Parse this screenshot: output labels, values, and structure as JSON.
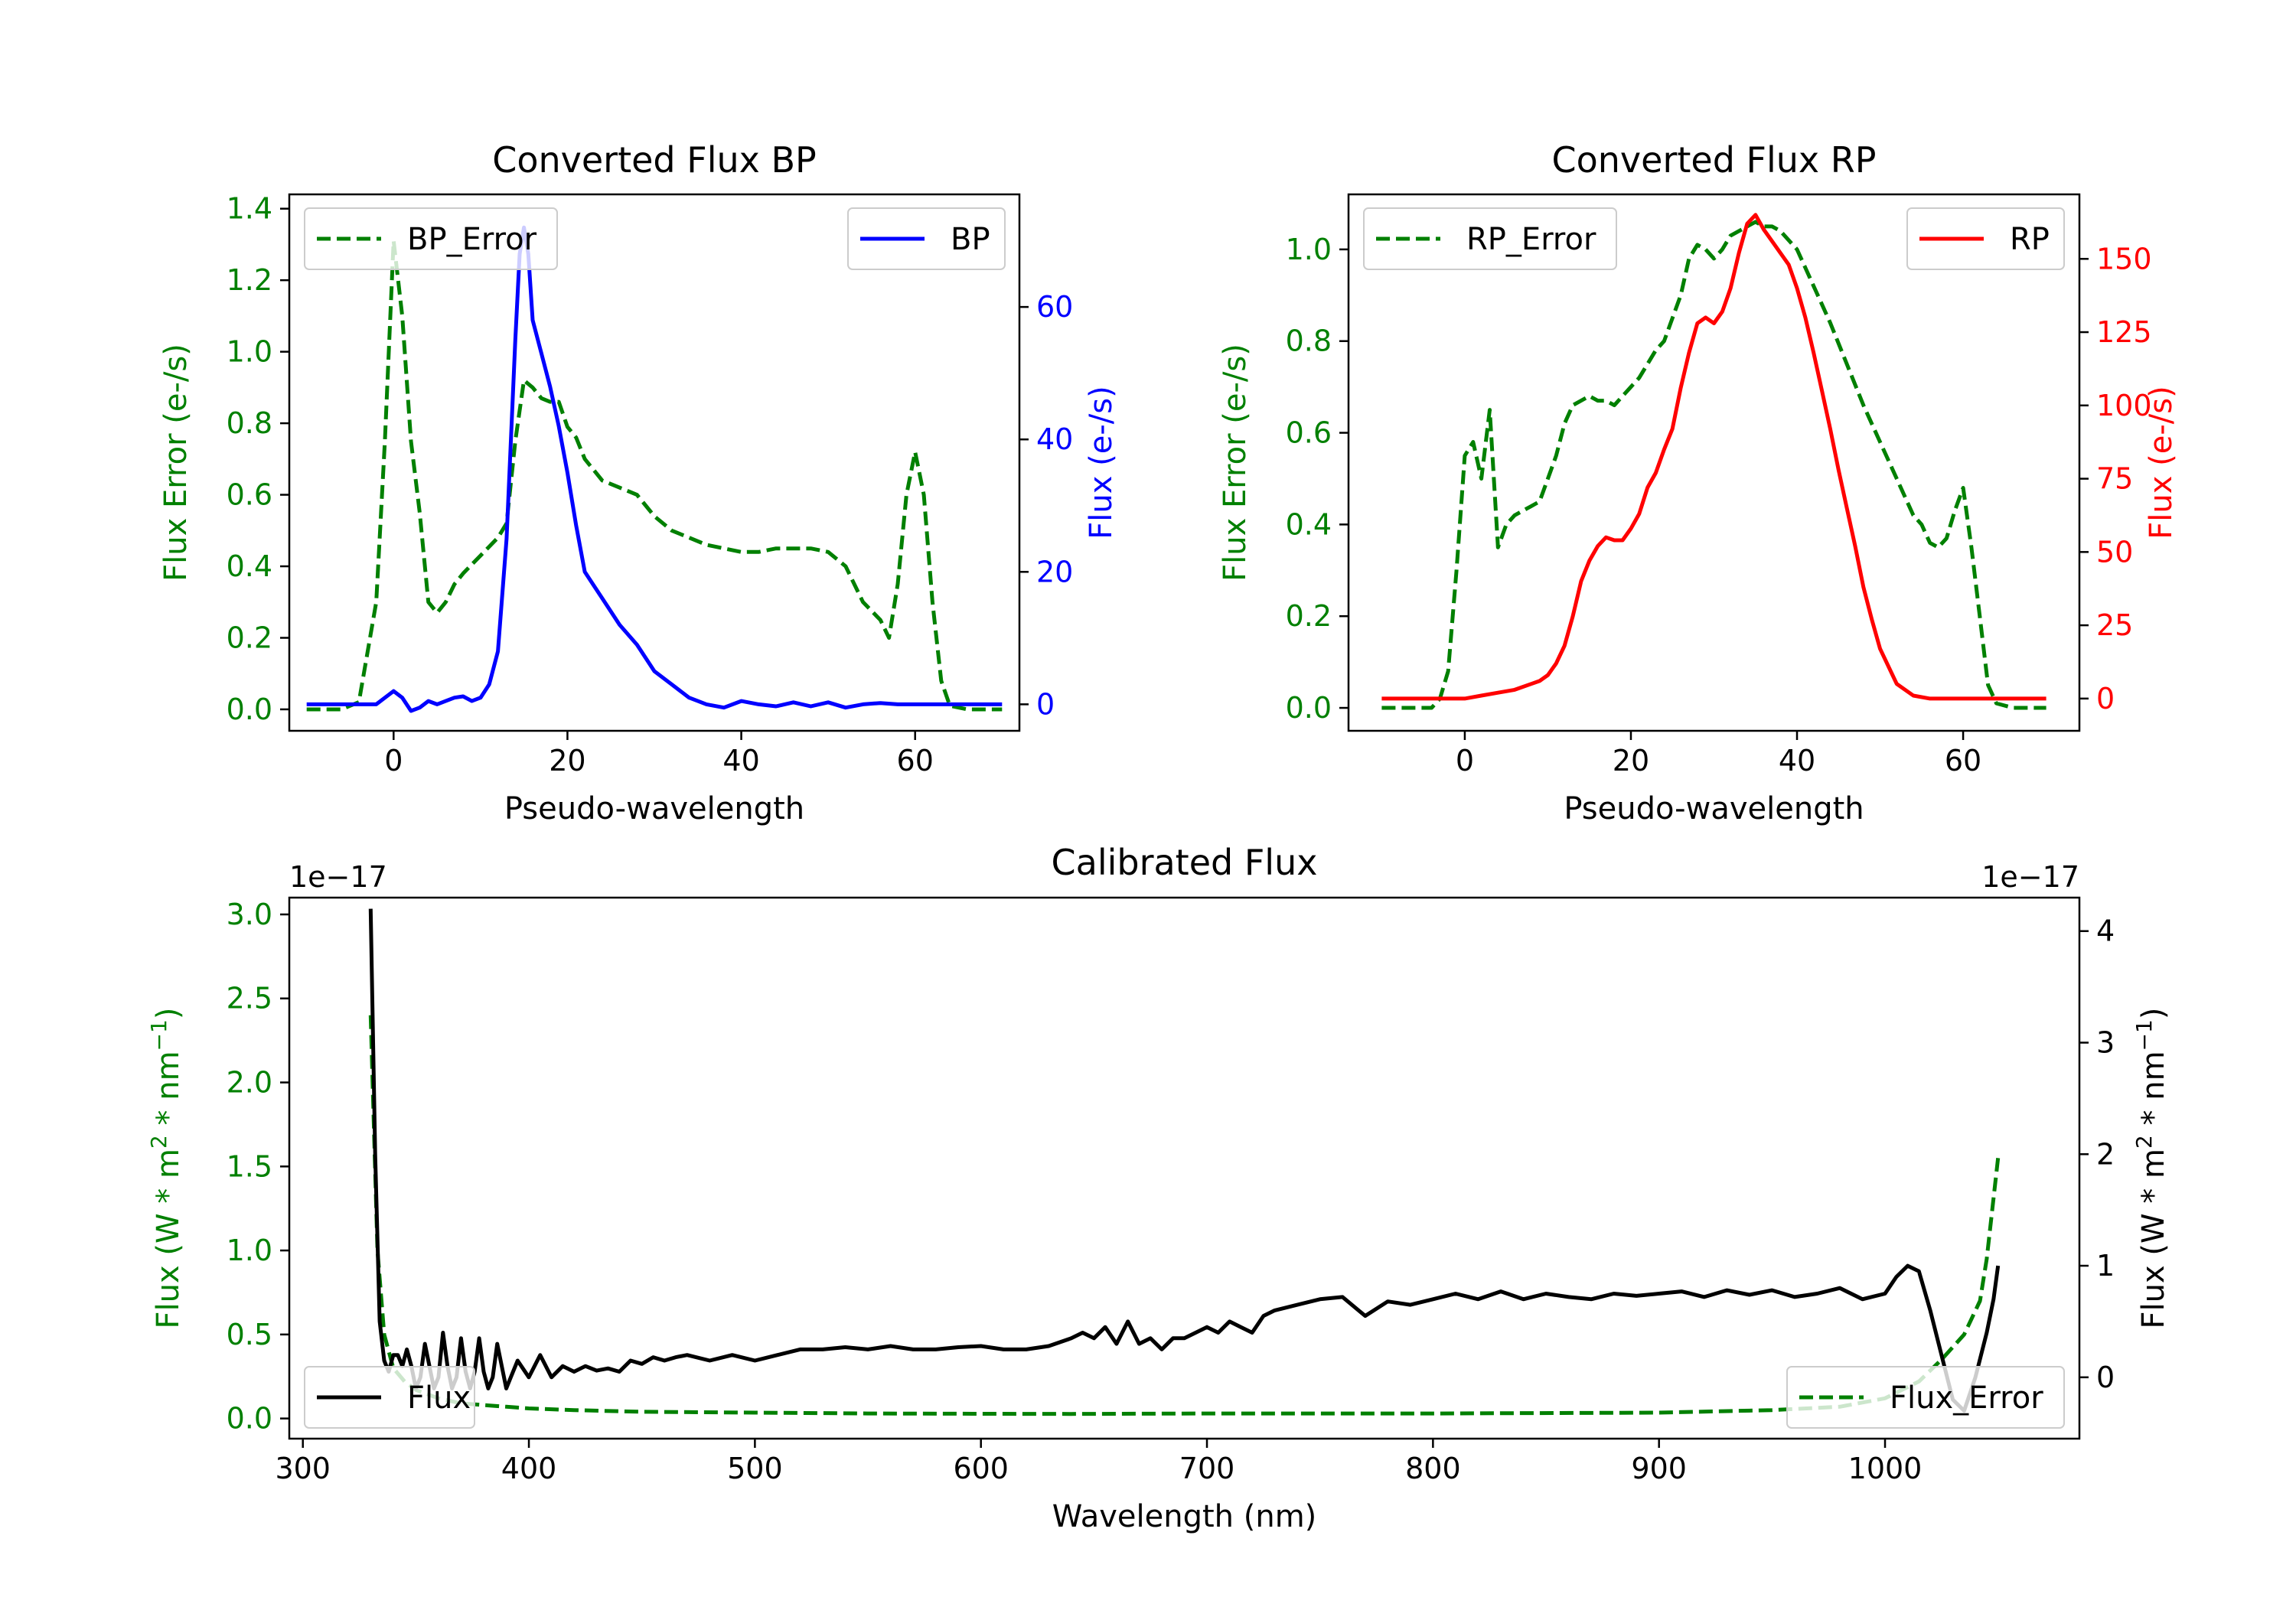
{
  "chart_data": [
    {
      "type": "line",
      "title": "Converted Flux BP",
      "xlabel": "Pseudo-wavelength",
      "ylabel_left": "Flux Error (e-/s)",
      "ylabel_right": "Flux (e-/s)",
      "xlim": [
        -12,
        72
      ],
      "ylim_left": [
        -0.06,
        1.44
      ],
      "ylim_right": [
        -4,
        77
      ],
      "xticks": [
        0,
        20,
        40,
        60
      ],
      "yticks_left": [
        0.0,
        0.2,
        0.4,
        0.6,
        0.8,
        1.0,
        1.2,
        1.4
      ],
      "yticks_right": [
        0,
        20,
        40,
        60
      ],
      "legend_left": {
        "label": "BP_Error",
        "placement": "upper left"
      },
      "legend_right": {
        "label": "BP",
        "placement": "upper right"
      },
      "series": [
        {
          "name": "BP_Error",
          "axis": "left",
          "color": "#008000",
          "style": "dashed",
          "x": [
            -10,
            -6,
            -4,
            -2,
            -1,
            0,
            1,
            2,
            3,
            4,
            5,
            6,
            7,
            8,
            10,
            12,
            13,
            14,
            15,
            16,
            17,
            18,
            19,
            20,
            21,
            22,
            24,
            26,
            28,
            30,
            32,
            34,
            36,
            38,
            40,
            42,
            44,
            46,
            48,
            50,
            52,
            54,
            56,
            57,
            58,
            59,
            60,
            61,
            62,
            63,
            64,
            66,
            70
          ],
          "y": [
            0.0,
            0.0,
            0.02,
            0.3,
            0.75,
            1.31,
            1.1,
            0.75,
            0.55,
            0.3,
            0.27,
            0.3,
            0.35,
            0.38,
            0.43,
            0.48,
            0.52,
            0.75,
            0.92,
            0.9,
            0.87,
            0.86,
            0.86,
            0.79,
            0.76,
            0.7,
            0.64,
            0.62,
            0.6,
            0.54,
            0.5,
            0.48,
            0.46,
            0.45,
            0.44,
            0.44,
            0.45,
            0.45,
            0.45,
            0.44,
            0.4,
            0.3,
            0.25,
            0.2,
            0.35,
            0.6,
            0.72,
            0.6,
            0.3,
            0.08,
            0.01,
            0.0,
            0.0
          ]
        },
        {
          "name": "BP",
          "axis": "right",
          "color": "#0000ff",
          "style": "solid",
          "x": [
            -10,
            -6,
            -4,
            -2,
            0,
            1,
            2,
            3,
            4,
            5,
            6,
            7,
            8,
            9,
            10,
            11,
            12,
            13,
            14,
            14.5,
            15,
            15.5,
            16,
            17,
            18,
            19,
            20,
            21,
            22,
            23,
            24,
            26,
            28,
            30,
            32,
            33,
            34,
            35,
            36,
            38,
            40,
            42,
            44,
            46,
            48,
            50,
            52,
            54,
            56,
            58,
            60,
            62,
            64,
            66,
            70
          ],
          "y": [
            0,
            0,
            0,
            0,
            2,
            1,
            -1,
            -0.5,
            0.5,
            0,
            0.5,
            1,
            1.2,
            0.5,
            1,
            3,
            8,
            25,
            55,
            68,
            72,
            68,
            58,
            53,
            48,
            42,
            35,
            27,
            20,
            18,
            16,
            12,
            9,
            5,
            3,
            2,
            1,
            0.5,
            0,
            -0.5,
            0.5,
            0,
            -0.3,
            0.3,
            -0.3,
            0.3,
            -0.5,
            0,
            0.2,
            0,
            0,
            0,
            0,
            0,
            0
          ]
        }
      ]
    },
    {
      "type": "line",
      "title": "Converted Flux RP",
      "xlabel": "Pseudo-wavelength",
      "ylabel_left": "Flux Error (e-/s)",
      "ylabel_right": "Flux (e-/s)",
      "xlim": [
        -14,
        74
      ],
      "ylim_left": [
        -0.05,
        1.12
      ],
      "ylim_right": [
        -11,
        172
      ],
      "xticks": [
        0,
        20,
        40,
        60
      ],
      "yticks_left": [
        0.0,
        0.2,
        0.4,
        0.6,
        0.8,
        1.0
      ],
      "yticks_right": [
        0,
        25,
        50,
        75,
        100,
        125,
        150
      ],
      "legend_left": {
        "label": "RP_Error",
        "placement": "upper left"
      },
      "legend_right": {
        "label": "RP",
        "placement": "upper right"
      },
      "series": [
        {
          "name": "RP_Error",
          "axis": "left",
          "color": "#008000",
          "style": "dashed",
          "x": [
            -10,
            -5,
            -4,
            -3,
            -2,
            -1,
            0,
            1,
            2,
            3,
            4,
            5,
            6,
            7,
            8,
            9,
            10,
            11,
            12,
            13,
            14,
            15,
            16,
            17,
            18,
            19,
            20,
            21,
            22,
            23,
            24,
            25,
            26,
            27,
            28,
            29,
            30,
            31,
            32,
            33,
            34,
            35,
            36,
            37,
            38,
            39,
            40,
            41,
            42,
            43,
            44,
            46,
            48,
            50,
            52,
            54,
            55,
            56,
            57,
            58,
            59,
            60,
            61,
            62,
            63,
            64,
            66,
            70
          ],
          "y": [
            0.0,
            0.0,
            0.0,
            0.02,
            0.08,
            0.3,
            0.55,
            0.58,
            0.5,
            0.65,
            0.35,
            0.4,
            0.42,
            0.43,
            0.44,
            0.45,
            0.5,
            0.55,
            0.62,
            0.66,
            0.67,
            0.68,
            0.67,
            0.67,
            0.66,
            0.68,
            0.7,
            0.72,
            0.75,
            0.78,
            0.8,
            0.85,
            0.9,
            0.98,
            1.01,
            1.0,
            0.98,
            1.0,
            1.03,
            1.04,
            1.05,
            1.06,
            1.05,
            1.05,
            1.04,
            1.02,
            1.0,
            0.96,
            0.92,
            0.88,
            0.84,
            0.75,
            0.66,
            0.58,
            0.5,
            0.42,
            0.4,
            0.36,
            0.35,
            0.37,
            0.43,
            0.48,
            0.35,
            0.2,
            0.05,
            0.01,
            0.0,
            0.0
          ]
        },
        {
          "name": "RP",
          "axis": "right",
          "color": "#ff0000",
          "style": "solid",
          "x": [
            -10,
            -4,
            0,
            2,
            4,
            6,
            8,
            9,
            10,
            11,
            12,
            13,
            14,
            15,
            16,
            17,
            18,
            19,
            20,
            21,
            22,
            23,
            24,
            25,
            26,
            27,
            28,
            29,
            30,
            31,
            32,
            33,
            34,
            35,
            36,
            37,
            38,
            39,
            40,
            41,
            42,
            43,
            44,
            45,
            46,
            47,
            48,
            49,
            50,
            52,
            54,
            56,
            58,
            60,
            62,
            66,
            70
          ],
          "y": [
            0,
            0,
            0,
            1,
            2,
            3,
            5,
            6,
            8,
            12,
            18,
            28,
            40,
            47,
            52,
            55,
            54,
            54,
            58,
            63,
            72,
            77,
            85,
            92,
            106,
            118,
            128,
            130,
            128,
            132,
            140,
            152,
            162,
            165,
            160,
            156,
            152,
            148,
            140,
            130,
            118,
            105,
            92,
            78,
            65,
            52,
            38,
            27,
            17,
            5,
            1,
            0,
            0,
            0,
            0,
            0,
            0
          ]
        }
      ]
    },
    {
      "type": "line",
      "title": "Calibrated Flux",
      "xlabel": "Wavelength (nm)",
      "ylabel_left": "Flux (W * m² * nm⁻¹)",
      "ylabel_right": "Flux (W * m² * nm⁻¹)",
      "ylabel_left_parts": [
        "Flux (W * m",
        "2",
        " * nm",
        "−1",
        ")"
      ],
      "ylabel_right_parts": [
        "Flux (W * m",
        "2",
        " * nm",
        "−1",
        ")"
      ],
      "offset_left": "1e−17",
      "offset_right": "1e−17",
      "xlim": [
        294,
        1086
      ],
      "ylim_left": [
        -0.12,
        3.1
      ],
      "ylim_right": [
        -0.55,
        4.3
      ],
      "xticks": [
        300,
        400,
        500,
        600,
        700,
        800,
        900,
        1000
      ],
      "yticks_left": [
        0.0,
        0.5,
        1.0,
        1.5,
        2.0,
        2.5,
        3.0
      ],
      "yticks_right": [
        0,
        1,
        2,
        3,
        4
      ],
      "legend_left": {
        "label": "Flux",
        "placement": "lower left"
      },
      "legend_right": {
        "label": "Flux_Error",
        "placement": "lower right"
      },
      "series": [
        {
          "name": "Flux_Error",
          "axis": "left",
          "color": "#008000",
          "style": "dashed",
          "x": [
            330,
            333,
            336,
            340,
            345,
            350,
            360,
            370,
            380,
            390,
            400,
            420,
            450,
            500,
            550,
            600,
            640,
            700,
            800,
            900,
            950,
            980,
            1000,
            1015,
            1025,
            1035,
            1042,
            1045,
            1050
          ],
          "y": [
            2.4,
            1.0,
            0.5,
            0.3,
            0.22,
            0.17,
            0.12,
            0.09,
            0.08,
            0.07,
            0.06,
            0.05,
            0.04,
            0.035,
            0.03,
            0.028,
            0.027,
            0.03,
            0.03,
            0.035,
            0.05,
            0.07,
            0.12,
            0.22,
            0.35,
            0.5,
            0.7,
            0.95,
            1.55
          ]
        },
        {
          "name": "Flux",
          "axis": "right",
          "color": "#000000",
          "style": "solid",
          "x": [
            330,
            332,
            334,
            336,
            338,
            340,
            342,
            344,
            346,
            348,
            350,
            352,
            354,
            356,
            358,
            360,
            362,
            364,
            366,
            368,
            370,
            372,
            374,
            376,
            378,
            380,
            382,
            384,
            386,
            388,
            390,
            392,
            395,
            400,
            405,
            410,
            415,
            420,
            425,
            430,
            435,
            440,
            445,
            450,
            455,
            460,
            465,
            470,
            480,
            490,
            500,
            510,
            520,
            530,
            540,
            550,
            560,
            570,
            580,
            590,
            600,
            610,
            620,
            630,
            640,
            645,
            650,
            655,
            660,
            665,
            670,
            675,
            680,
            685,
            690,
            695,
            700,
            705,
            710,
            715,
            720,
            725,
            730,
            740,
            750,
            760,
            770,
            780,
            790,
            800,
            810,
            820,
            830,
            840,
            850,
            860,
            870,
            880,
            890,
            900,
            910,
            920,
            930,
            940,
            950,
            960,
            970,
            980,
            990,
            1000,
            1005,
            1010,
            1015,
            1020,
            1025,
            1030,
            1035,
            1040,
            1045,
            1048,
            1050
          ],
          "y": [
            4.2,
            2.0,
            0.5,
            0.15,
            0.05,
            0.2,
            0.2,
            0.1,
            0.25,
            0.1,
            -0.1,
            0.0,
            0.3,
            0.1,
            -0.1,
            0.0,
            0.4,
            0.1,
            -0.1,
            0.0,
            0.35,
            0.05,
            -0.1,
            0.05,
            0.35,
            0.05,
            -0.1,
            0.0,
            0.3,
            0.1,
            -0.1,
            0.0,
            0.15,
            0.0,
            0.2,
            0.0,
            0.1,
            0.05,
            0.1,
            0.06,
            0.08,
            0.05,
            0.15,
            0.12,
            0.18,
            0.15,
            0.18,
            0.2,
            0.15,
            0.2,
            0.15,
            0.2,
            0.25,
            0.25,
            0.27,
            0.25,
            0.28,
            0.25,
            0.25,
            0.27,
            0.28,
            0.25,
            0.25,
            0.28,
            0.35,
            0.4,
            0.35,
            0.45,
            0.3,
            0.5,
            0.3,
            0.35,
            0.25,
            0.35,
            0.35,
            0.4,
            0.45,
            0.4,
            0.5,
            0.45,
            0.4,
            0.55,
            0.6,
            0.65,
            0.7,
            0.72,
            0.55,
            0.68,
            0.65,
            0.7,
            0.75,
            0.7,
            0.77,
            0.7,
            0.75,
            0.72,
            0.7,
            0.75,
            0.73,
            0.75,
            0.77,
            0.72,
            0.78,
            0.74,
            0.78,
            0.72,
            0.75,
            0.8,
            0.7,
            0.75,
            0.9,
            1.0,
            0.95,
            0.6,
            0.2,
            -0.2,
            -0.3,
            0.0,
            0.4,
            0.7,
            1.0
          ]
        }
      ]
    }
  ]
}
